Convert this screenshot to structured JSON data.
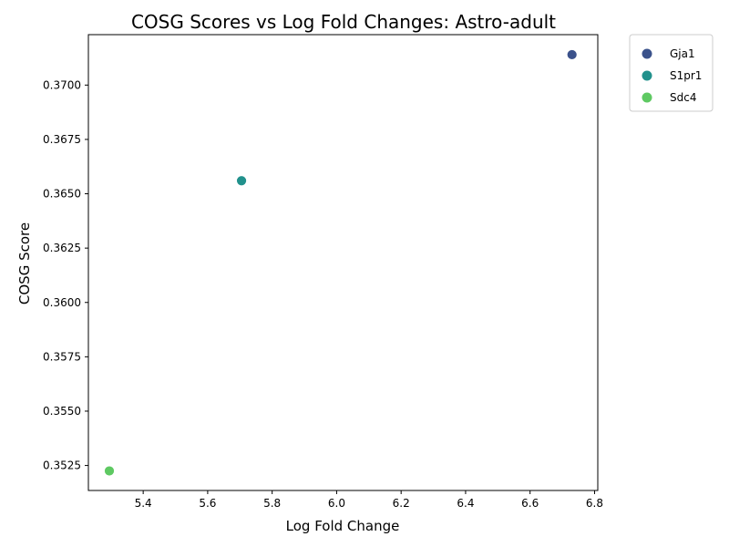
{
  "chart_data": {
    "type": "scatter",
    "title": "COSG Scores vs Log Fold Changes: Astro-adult",
    "xlabel": "Log Fold Change",
    "ylabel": "COSG Score",
    "xlim": [
      5.23,
      6.81
    ],
    "ylim": [
      0.35135,
      0.37232
    ],
    "x_ticks": [
      5.4,
      5.6,
      5.8,
      6.0,
      6.2,
      6.4,
      6.6,
      6.8
    ],
    "x_tick_labels": [
      "5.4",
      "5.6",
      "5.8",
      "6.0",
      "6.2",
      "6.4",
      "6.6",
      "6.8"
    ],
    "y_ticks": [
      0.3525,
      0.355,
      0.3575,
      0.36,
      0.3625,
      0.365,
      0.3675,
      0.37
    ],
    "y_tick_labels": [
      "0.3525",
      "0.3550",
      "0.3575",
      "0.3600",
      "0.3625",
      "0.3650",
      "0.3675",
      "0.3700"
    ],
    "grid": false,
    "legend_position": "outside-top-right",
    "series": [
      {
        "name": "Gja1",
        "color": "#3b528b",
        "points": [
          {
            "x": 6.73,
            "y": 0.3714
          }
        ]
      },
      {
        "name": "S1pr1",
        "color": "#21918c",
        "points": [
          {
            "x": 5.705,
            "y": 0.3656
          }
        ]
      },
      {
        "name": "Sdc4",
        "color": "#5ec962",
        "points": [
          {
            "x": 5.295,
            "y": 0.35225
          }
        ]
      }
    ]
  }
}
